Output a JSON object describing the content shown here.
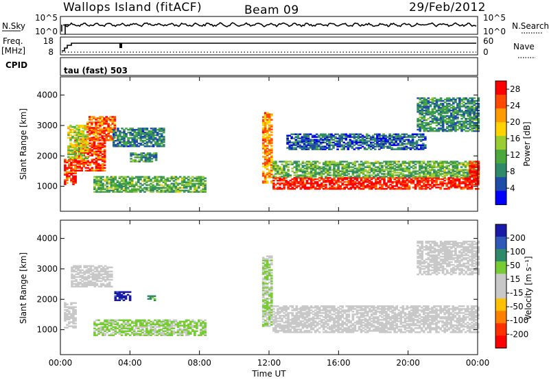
{
  "header": {
    "station": "Wallops Island (fitACF)",
    "beam": "Beam 09",
    "date": "29/Feb/2012"
  },
  "summary_panels": {
    "nsky_label": "N.Sky",
    "nsearch_label": "N.Search",
    "nsky_ticks": [
      "10^5",
      "10^0"
    ],
    "nsearch_ticks": [
      "10^5",
      "10^0"
    ],
    "freq_label_line1": "Freq.",
    "freq_label_line2": "[MHz]",
    "freq_ticks": [
      "18",
      "8"
    ],
    "nave_label": "Nave",
    "nave_ticks": [
      "60",
      "0"
    ],
    "cpid_label": "CPID",
    "cpid_value": "tau (fast) 503"
  },
  "colors": {
    "power_scale": [
      "#0000ff",
      "#1e4ca8",
      "#2f8a6a",
      "#4aa83c",
      "#9acd32",
      "#ffd200",
      "#ff9a00",
      "#ff4a00",
      "#ff0000"
    ],
    "velocity_scale": [
      "#1a1aa8",
      "#2f58b8",
      "#2f8a6a",
      "#77cc33",
      "#c8c8c8",
      "#c8c8c8",
      "#ffc000",
      "#ff8000",
      "#ff3000",
      "#ff0000"
    ],
    "line": "#000000"
  },
  "chart_data": [
    {
      "type": "heatmap",
      "name": "power",
      "xlabel": "",
      "ylabel": "Slant Range [km]",
      "x_ticks": [
        "00:00",
        "04:00",
        "08:00",
        "12:00",
        "16:00",
        "20:00",
        "00:00"
      ],
      "xlim_hours": [
        0,
        24
      ],
      "y_ticks": [
        1000,
        2000,
        3000,
        4000
      ],
      "ylim": [
        180,
        4600
      ],
      "colorbar_label": "Power [dB]",
      "colorbar_ticks": [
        4,
        8,
        12,
        16,
        20,
        24,
        28
      ],
      "colorbar_range": [
        0,
        30
      ],
      "regions": [
        {
          "t0": 0.2,
          "t1": 0.8,
          "r0": 1050,
          "r1": 1900,
          "v": 27
        },
        {
          "t0": 0.8,
          "t1": 2.5,
          "r0": 1500,
          "r1": 2600,
          "v": 26
        },
        {
          "t0": 0.4,
          "t1": 1.5,
          "r0": 1900,
          "r1": 3000,
          "v": 16
        },
        {
          "t0": 1.5,
          "t1": 3.1,
          "r0": 2500,
          "r1": 3300,
          "v": 24
        },
        {
          "t0": 3.0,
          "t1": 6.0,
          "r0": 2300,
          "r1": 2900,
          "v": 8
        },
        {
          "t0": 1.9,
          "t1": 8.3,
          "r0": 800,
          "r1": 1300,
          "v": 12
        },
        {
          "t0": 4.0,
          "t1": 5.5,
          "r0": 1800,
          "r1": 2100,
          "v": 10
        },
        {
          "t0": 11.6,
          "t1": 12.2,
          "r0": 1100,
          "r1": 3400,
          "v": 22
        },
        {
          "t0": 12.2,
          "t1": 24.0,
          "r0": 900,
          "r1": 1300,
          "v": 28
        },
        {
          "t0": 12.2,
          "t1": 24.0,
          "r0": 1300,
          "r1": 1800,
          "v": 12
        },
        {
          "t0": 13.0,
          "t1": 21.0,
          "r0": 2200,
          "r1": 2700,
          "v": 6
        },
        {
          "t0": 20.5,
          "t1": 24.0,
          "r0": 2800,
          "r1": 3900,
          "v": 9
        },
        {
          "t0": 23.5,
          "t1": 24.0,
          "r0": 1300,
          "r1": 1800,
          "v": 28
        }
      ]
    },
    {
      "type": "heatmap",
      "name": "velocity",
      "xlabel": "Time UT",
      "ylabel": "Slant Range [km]",
      "x_ticks": [
        "00:00",
        "04:00",
        "08:00",
        "12:00",
        "16:00",
        "20:00",
        "00:00"
      ],
      "xlim_hours": [
        0,
        24
      ],
      "y_ticks": [
        1000,
        2000,
        3000,
        4000
      ],
      "ylim": [
        180,
        4600
      ],
      "colorbar_label": "Velocity [m s⁻¹]",
      "colorbar_ticks": [
        200,
        100,
        50,
        15,
        -15,
        -50,
        -100,
        -200
      ],
      "colorbar_range": [
        -250,
        250
      ],
      "regions": [
        {
          "t0": 0.2,
          "t1": 0.8,
          "r0": 1050,
          "r1": 1900,
          "v": 0
        },
        {
          "t0": 0.6,
          "t1": 3.0,
          "r0": 2400,
          "r1": 3100,
          "v": 5
        },
        {
          "t0": 1.9,
          "t1": 8.3,
          "r0": 800,
          "r1": 1300,
          "v": 60
        },
        {
          "t0": 3.1,
          "t1": 4.0,
          "r0": 1950,
          "r1": 2250,
          "v": 220
        },
        {
          "t0": 5.0,
          "t1": 5.4,
          "r0": 1950,
          "r1": 2100,
          "v": 120
        },
        {
          "t0": 11.6,
          "t1": 12.2,
          "r0": 1100,
          "r1": 3400,
          "v": 50
        },
        {
          "t0": 12.2,
          "t1": 24.0,
          "r0": 900,
          "r1": 1800,
          "v": 0
        },
        {
          "t0": 20.5,
          "t1": 24.0,
          "r0": 2800,
          "r1": 3900,
          "v": 0
        }
      ]
    }
  ]
}
